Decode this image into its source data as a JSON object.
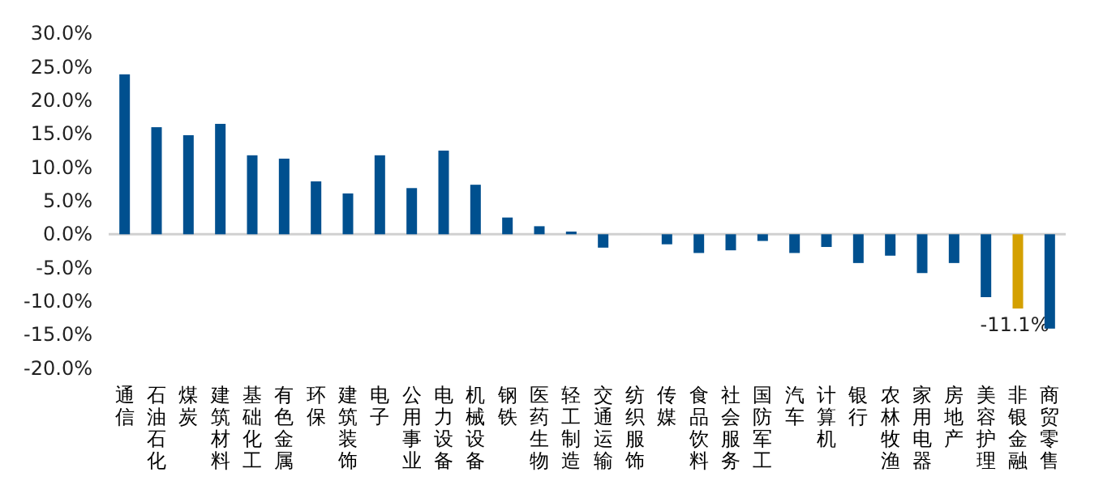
{
  "chart_data": {
    "type": "bar",
    "categories": [
      "通信",
      "石油石化",
      "煤炭",
      "建筑材料",
      "基础化工",
      "有色金属",
      "环保",
      "建筑装饰",
      "电子",
      "公用事业",
      "电力设备",
      "机械设备",
      "钢铁",
      "医药生物",
      "轻工制造",
      "交通运输",
      "纺织服饰",
      "传媒",
      "食品饮料",
      "社会服务",
      "国防军工",
      "汽车",
      "计算机",
      "银行",
      "农林牧渔",
      "家用电器",
      "房地产",
      "美容护理",
      "非银金融",
      "商贸零售"
    ],
    "values": [
      23.9,
      16.0,
      14.8,
      16.5,
      11.8,
      11.3,
      7.9,
      6.1,
      11.8,
      6.9,
      12.5,
      7.4,
      2.5,
      1.2,
      0.4,
      -2.0,
      0,
      -1.5,
      -2.8,
      -2.4,
      -1.0,
      -2.8,
      -1.9,
      -4.3,
      -3.2,
      -5.8,
      -4.3,
      -9.4,
      -11.1,
      -14.1
    ],
    "colors": [
      "#00508f",
      "#00508f",
      "#00508f",
      "#00508f",
      "#00508f",
      "#00508f",
      "#00508f",
      "#00508f",
      "#00508f",
      "#00508f",
      "#00508f",
      "#00508f",
      "#00508f",
      "#00508f",
      "#00508f",
      "#00508f",
      "#00508f",
      "#00508f",
      "#00508f",
      "#00508f",
      "#00508f",
      "#00508f",
      "#00508f",
      "#00508f",
      "#00508f",
      "#00508f",
      "#00508f",
      "#00508f",
      "#d4a000",
      "#00508f"
    ],
    "value_labels": [
      null,
      null,
      null,
      null,
      null,
      null,
      null,
      null,
      null,
      null,
      null,
      null,
      null,
      null,
      null,
      null,
      null,
      null,
      null,
      null,
      null,
      null,
      null,
      null,
      null,
      null,
      null,
      null,
      "-11.1%",
      null
    ],
    "ylim": [
      -20,
      30
    ],
    "yticks": [
      {
        "value": 30,
        "label": "30.0%"
      },
      {
        "value": 25,
        "label": "25.0%"
      },
      {
        "value": 20,
        "label": "20.0%"
      },
      {
        "value": 15,
        "label": "15.0%"
      },
      {
        "value": 10,
        "label": "10.0%"
      },
      {
        "value": 5,
        "label": "5.0%"
      },
      {
        "value": 0,
        "label": "0.0%"
      },
      {
        "value": -5,
        "label": "-5.0%"
      },
      {
        "value": -10,
        "label": "-10.0%"
      },
      {
        "value": -15,
        "label": "-15.0%"
      },
      {
        "value": -20,
        "label": "-20.0%"
      }
    ]
  }
}
